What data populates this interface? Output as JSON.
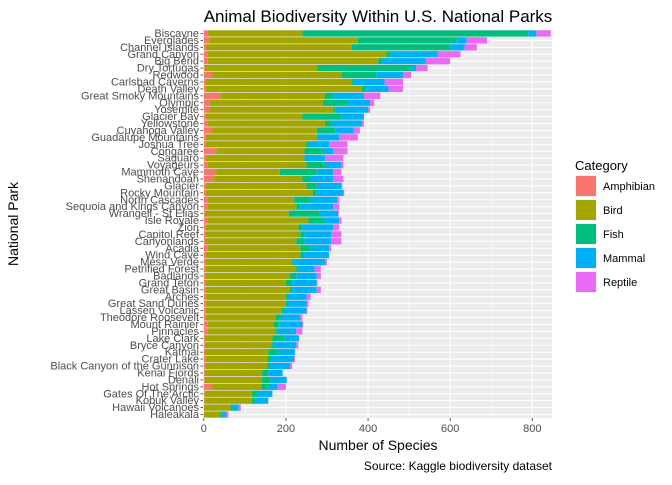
{
  "chart_data": {
    "type": "bar",
    "orientation": "horizontal",
    "stacked": true,
    "title": "Animal Biodiversity Within U.S. National Parks",
    "xlabel": "Number of Species",
    "ylabel": "National Park",
    "caption": "Source: Kaggle biodiversity dataset",
    "xlim": [
      -2,
      848
    ],
    "xticks": [
      0,
      200,
      400,
      600,
      800
    ],
    "grid": true,
    "legend_title": "Category",
    "legend_position": "right",
    "series": [
      {
        "name": "Amphibian",
        "color": "#F8766D"
      },
      {
        "name": "Bird",
        "color": "#A3A500"
      },
      {
        "name": "Fish",
        "color": "#00BF7D"
      },
      {
        "name": "Mammal",
        "color": "#00B0F6"
      },
      {
        "name": "Reptile",
        "color": "#E76BF3"
      }
    ],
    "parks": [
      {
        "name": "Biscayne",
        "values": [
          10,
          230,
          550,
          20,
          35
        ]
      },
      {
        "name": "Everglades",
        "values": [
          15,
          360,
          240,
          25,
          50
        ]
      },
      {
        "name": "Channel Islands",
        "values": [
          5,
          355,
          240,
          35,
          30
        ]
      },
      {
        "name": "Grand Canyon",
        "values": [
          10,
          435,
          10,
          115,
          55
        ]
      },
      {
        "name": "Big Bend",
        "values": [
          10,
          415,
          10,
          105,
          60
        ]
      },
      {
        "name": "Dry Tortugas",
        "values": [
          2,
          275,
          230,
          10,
          28
        ]
      },
      {
        "name": "Redwood",
        "values": [
          20,
          315,
          85,
          65,
          20
        ]
      },
      {
        "name": "Carlsbad Caverns",
        "values": [
          5,
          355,
          5,
          75,
          45
        ]
      },
      {
        "name": "Death Valley",
        "values": [
          5,
          380,
          10,
          55,
          35
        ]
      },
      {
        "name": "Great Smoky Mountains",
        "values": [
          40,
          255,
          20,
          75,
          40
        ]
      },
      {
        "name": "Olympic",
        "values": [
          15,
          275,
          60,
          55,
          10
        ]
      },
      {
        "name": "Yosemite",
        "values": [
          15,
          300,
          5,
          80,
          5
        ]
      },
      {
        "name": "Glacier Bay",
        "values": [
          5,
          235,
          95,
          55,
          0
        ]
      },
      {
        "name": "Yellowstone",
        "values": [
          10,
          285,
          15,
          75,
          5
        ]
      },
      {
        "name": "Cuyahoga Valley",
        "values": [
          20,
          255,
          45,
          45,
          15
        ]
      },
      {
        "name": "Guadalupe Mountains",
        "values": [
          5,
          270,
          0,
          55,
          45
        ]
      },
      {
        "name": "Joshua Tree",
        "values": [
          5,
          245,
          5,
          50,
          45
        ]
      },
      {
        "name": "Congaree",
        "values": [
          30,
          215,
          45,
          25,
          35
        ]
      },
      {
        "name": "Saguaro",
        "values": [
          5,
          240,
          0,
          50,
          45
        ]
      },
      {
        "name": "Voyageurs",
        "values": [
          10,
          240,
          45,
          40,
          5
        ]
      },
      {
        "name": "Mammoth Cave",
        "values": [
          30,
          155,
          90,
          40,
          20
        ]
      },
      {
        "name": "Shenandoah",
        "values": [
          25,
          215,
          20,
          55,
          25
        ]
      },
      {
        "name": "Glacier",
        "values": [
          5,
          245,
          25,
          60,
          2
        ]
      },
      {
        "name": "Rocky Mountain",
        "values": [
          5,
          260,
          10,
          65,
          2
        ]
      },
      {
        "name": "North Cascades",
        "values": [
          10,
          210,
          40,
          65,
          5
        ]
      },
      {
        "name": "Sequoia and Kings Canyon",
        "values": [
          10,
          215,
          10,
          80,
          15
        ]
      },
      {
        "name": "Wrangell - St Elias",
        "values": [
          2,
          205,
          75,
          45,
          2
        ]
      },
      {
        "name": "Isle Royale",
        "values": [
          10,
          245,
          40,
          35,
          5
        ]
      },
      {
        "name": "Zion",
        "values": [
          5,
          225,
          10,
          75,
          15
        ]
      },
      {
        "name": "Capitol Reef",
        "values": [
          5,
          230,
          10,
          65,
          25
        ]
      },
      {
        "name": "Canyonlands",
        "values": [
          5,
          220,
          20,
          65,
          25
        ]
      },
      {
        "name": "Acadia",
        "values": [
          10,
          225,
          25,
          45,
          5
        ]
      },
      {
        "name": "Wind Cave",
        "values": [
          5,
          230,
          10,
          60,
          0
        ]
      },
      {
        "name": "Mesa Verde",
        "values": [
          5,
          210,
          5,
          75,
          5
        ]
      },
      {
        "name": "Petrified Forest",
        "values": [
          5,
          220,
          5,
          40,
          15
        ]
      },
      {
        "name": "Badlands",
        "values": [
          5,
          205,
          15,
          50,
          10
        ]
      },
      {
        "name": "Grand Teton",
        "values": [
          5,
          195,
          15,
          60,
          2
        ]
      },
      {
        "name": "Great Basin",
        "values": [
          5,
          205,
          5,
          60,
          10
        ]
      },
      {
        "name": "Arches",
        "values": [
          5,
          195,
          5,
          45,
          10
        ]
      },
      {
        "name": "Great Sand Dunes",
        "values": [
          5,
          195,
          5,
          45,
          5
        ]
      },
      {
        "name": "Lassen Volcanic",
        "values": [
          5,
          185,
          5,
          55,
          2
        ]
      },
      {
        "name": "Theodore Roosevelt",
        "values": [
          5,
          170,
          15,
          45,
          5
        ]
      },
      {
        "name": "Mount Rainier",
        "values": [
          10,
          160,
          15,
          55,
          2
        ]
      },
      {
        "name": "Pinnacles",
        "values": [
          10,
          165,
          5,
          45,
          15
        ]
      },
      {
        "name": "Lake Clark",
        "values": [
          2,
          165,
          30,
          35,
          0
        ]
      },
      {
        "name": "Bryce Canyon",
        "values": [
          5,
          160,
          5,
          55,
          5
        ]
      },
      {
        "name": "Katmai",
        "values": [
          2,
          155,
          25,
          40,
          0
        ]
      },
      {
        "name": "Crater Lake",
        "values": [
          5,
          150,
          10,
          55,
          2
        ]
      },
      {
        "name": "Black Canyon of the Gunnison",
        "values": [
          5,
          150,
          5,
          50,
          5
        ]
      },
      {
        "name": "Kenai Fjords",
        "values": [
          2,
          140,
          15,
          35,
          0
        ]
      },
      {
        "name": "Denali",
        "values": [
          2,
          140,
          20,
          40,
          0
        ]
      },
      {
        "name": "Hot Springs",
        "values": [
          20,
          120,
          20,
          20,
          20
        ]
      },
      {
        "name": "Gates Of The Arctic",
        "values": [
          2,
          115,
          15,
          35,
          0
        ]
      },
      {
        "name": "Kobuk Valley",
        "values": [
          2,
          115,
          10,
          30,
          0
        ]
      },
      {
        "name": "Hawaii Volcanoes",
        "values": [
          0,
          65,
          5,
          15,
          5
        ]
      },
      {
        "name": "Haleakala",
        "values": [
          0,
          40,
          5,
          10,
          5
        ]
      }
    ]
  }
}
